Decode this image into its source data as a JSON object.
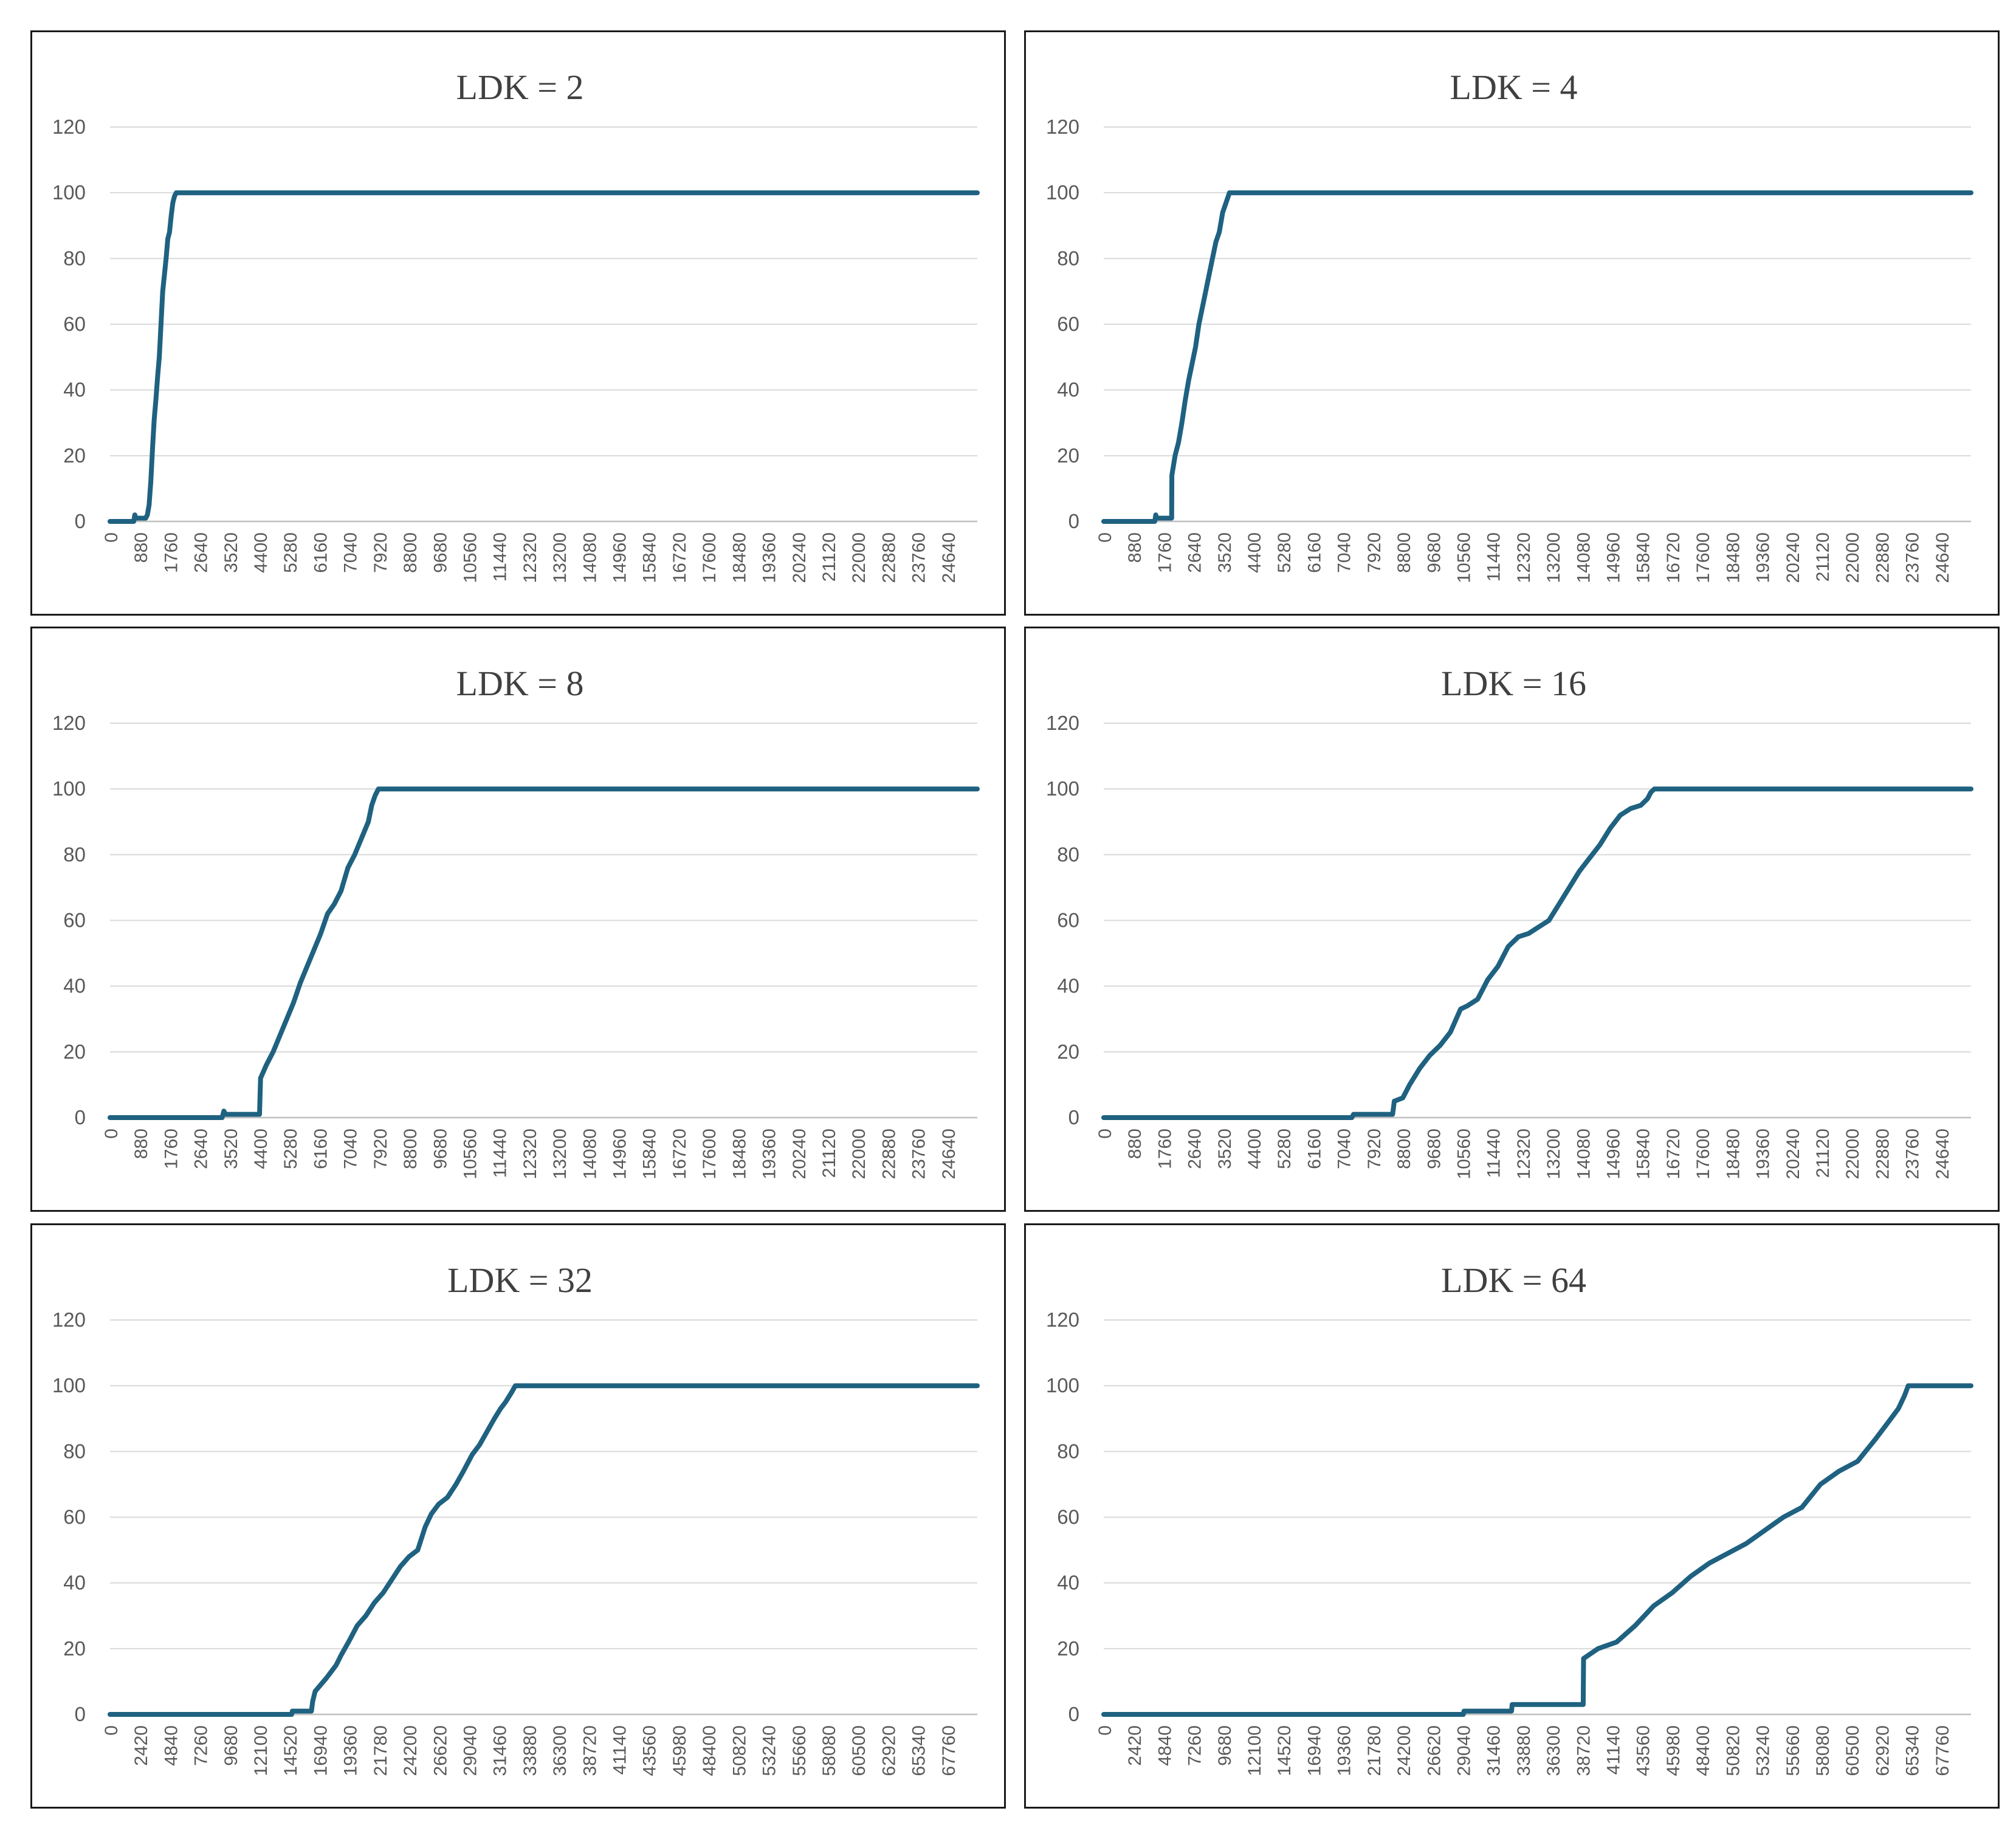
{
  "colors": {
    "series": "#1f6180",
    "grid": "#d9d9d9",
    "text": "#595959"
  },
  "chart_data": [
    {
      "type": "line",
      "title": "LDK = 2",
      "ylim": [
        0,
        120
      ],
      "yticks": [
        0,
        20,
        40,
        60,
        80,
        100,
        120
      ],
      "xlim": [
        0,
        25520
      ],
      "xticks": [
        "0",
        "880",
        "1760",
        "2640",
        "3520",
        "4400",
        "5280",
        "6160",
        "7040",
        "7920",
        "8800",
        "9680",
        "10560",
        "11440",
        "12320",
        "13200",
        "14080",
        "14960",
        "15840",
        "16720",
        "17600",
        "18480",
        "19360",
        "20240",
        "21120",
        "22000",
        "22880",
        "23760",
        "24640"
      ],
      "grid": "horizontal",
      "series": [
        {
          "x": [
            0,
            700,
            730,
            760,
            800,
            850,
            900,
            950,
            1000,
            1050,
            1100,
            1150,
            1200,
            1250,
            1300,
            1350,
            1400,
            1450,
            1500,
            1550,
            1600,
            1650,
            1700,
            1750,
            1800,
            1850,
            1900,
            1950,
            2000,
            2050,
            2100,
            2150,
            2200,
            25520
          ],
          "y": [
            0,
            0,
            2,
            1,
            1,
            1,
            1,
            1,
            1,
            1,
            2,
            5,
            12,
            22,
            31,
            37,
            44,
            50,
            60,
            70,
            75,
            80,
            86,
            88,
            93,
            97,
            99,
            100,
            100,
            100,
            100,
            100,
            100,
            100
          ]
        }
      ]
    },
    {
      "type": "line",
      "title": "LDK = 4",
      "ylim": [
        0,
        120
      ],
      "yticks": [
        0,
        20,
        40,
        60,
        80,
        100,
        120
      ],
      "xlim": [
        0,
        25520
      ],
      "xticks": [
        "0",
        "880",
        "1760",
        "2640",
        "3520",
        "4400",
        "5280",
        "6160",
        "7040",
        "7920",
        "8800",
        "9680",
        "10560",
        "11440",
        "12320",
        "13200",
        "14080",
        "14960",
        "15840",
        "16720",
        "17600",
        "18480",
        "19360",
        "20240",
        "21120",
        "22000",
        "22880",
        "23760",
        "24640"
      ],
      "grid": "horizontal",
      "series": [
        {
          "x": [
            0,
            1500,
            1530,
            1560,
            1600,
            1700,
            1900,
            2000,
            2005,
            2100,
            2200,
            2300,
            2400,
            2500,
            2600,
            2700,
            2800,
            2900,
            3000,
            3100,
            3200,
            3300,
            3400,
            3500,
            3600,
            3700,
            3800,
            25520
          ],
          "y": [
            0,
            0,
            2,
            1,
            1,
            1,
            1,
            1,
            14,
            20,
            24,
            30,
            37,
            43,
            48,
            53,
            60,
            65,
            70,
            75,
            80,
            85,
            88,
            94,
            97,
            100,
            100,
            100
          ]
        }
      ]
    },
    {
      "type": "line",
      "title": "LDK = 8",
      "ylim": [
        0,
        120
      ],
      "yticks": [
        0,
        20,
        40,
        60,
        80,
        100,
        120
      ],
      "xlim": [
        0,
        25520
      ],
      "xticks": [
        "0",
        "880",
        "1760",
        "2640",
        "3520",
        "4400",
        "5280",
        "6160",
        "7040",
        "7920",
        "8800",
        "9680",
        "10560",
        "11440",
        "12320",
        "13200",
        "14080",
        "14960",
        "15840",
        "16720",
        "17600",
        "18480",
        "19360",
        "20240",
        "21120",
        "22000",
        "22880",
        "23760",
        "24640"
      ],
      "grid": "horizontal",
      "series": [
        {
          "x": [
            0,
            3300,
            3350,
            3400,
            3500,
            4000,
            4400,
            4430,
            4600,
            4800,
            5000,
            5200,
            5400,
            5600,
            5800,
            6000,
            6200,
            6400,
            6600,
            6800,
            7000,
            7200,
            7400,
            7600,
            7700,
            7800,
            7900,
            8000,
            25520
          ],
          "y": [
            0,
            0,
            2,
            1,
            1,
            1,
            1,
            12,
            16,
            20,
            25,
            30,
            35,
            41,
            46,
            51,
            56,
            62,
            65,
            69,
            76,
            80,
            85,
            90,
            95,
            98,
            100,
            100,
            100
          ]
        }
      ]
    },
    {
      "type": "line",
      "title": "LDK = 16",
      "ylim": [
        0,
        120
      ],
      "yticks": [
        0,
        20,
        40,
        60,
        80,
        100,
        120
      ],
      "xlim": [
        0,
        25520
      ],
      "xticks": [
        "0",
        "880",
        "1760",
        "2640",
        "3520",
        "4400",
        "5280",
        "6160",
        "7040",
        "7920",
        "8800",
        "9680",
        "10560",
        "11440",
        "12320",
        "13200",
        "14080",
        "14960",
        "15840",
        "16720",
        "17600",
        "18480",
        "19360",
        "20240",
        "21120",
        "22000",
        "22880",
        "23760",
        "24640"
      ],
      "grid": "horizontal",
      "series": [
        {
          "x": [
            0,
            7300,
            7350,
            8500,
            8550,
            8800,
            9000,
            9300,
            9600,
            9900,
            10200,
            10500,
            10700,
            11000,
            11300,
            11600,
            11900,
            12200,
            12500,
            12800,
            13100,
            13400,
            13700,
            14000,
            14300,
            14600,
            14900,
            15200,
            15500,
            15800,
            16000,
            16100,
            16200,
            25520
          ],
          "y": [
            0,
            0,
            1,
            1,
            5,
            6,
            10,
            15,
            19,
            22,
            26,
            33,
            34,
            36,
            42,
            46,
            52,
            55,
            56,
            58,
            60,
            65,
            70,
            75,
            79,
            83,
            88,
            92,
            94,
            95,
            97,
            99,
            100,
            100
          ]
        }
      ]
    },
    {
      "type": "line",
      "title": "LDK = 32",
      "ylim": [
        0,
        120
      ],
      "yticks": [
        0,
        20,
        40,
        60,
        80,
        100,
        120
      ],
      "xlim": [
        0,
        70180
      ],
      "xticks": [
        "0",
        "2420",
        "4840",
        "7260",
        "9680",
        "12100",
        "14520",
        "16940",
        "19360",
        "21780",
        "24200",
        "26620",
        "29040",
        "31460",
        "33880",
        "36300",
        "38720",
        "41140",
        "43560",
        "45980",
        "48400",
        "50820",
        "53240",
        "55660",
        "58080",
        "60500",
        "62920",
        "65340",
        "67760"
      ],
      "grid": "horizontal",
      "series": [
        {
          "x": [
            0,
            14700,
            14750,
            16300,
            16400,
            16600,
            17500,
            17900,
            18300,
            18700,
            19300,
            20000,
            20700,
            21400,
            22100,
            22800,
            23500,
            24200,
            24900,
            25500,
            26000,
            26600,
            27300,
            28000,
            28600,
            29300,
            29900,
            30500,
            31100,
            31600,
            32000,
            32500,
            32800,
            70180
          ],
          "y": [
            0,
            0,
            1,
            1,
            4,
            7,
            11,
            13,
            15,
            18,
            22,
            27,
            30,
            34,
            37,
            41,
            45,
            48,
            50,
            57,
            61,
            64,
            66,
            70,
            74,
            79,
            82,
            86,
            90,
            93,
            95,
            98,
            100,
            100
          ]
        }
      ]
    },
    {
      "type": "line",
      "title": "LDK = 64",
      "ylim": [
        0,
        120
      ],
      "yticks": [
        0,
        20,
        40,
        60,
        80,
        100,
        120
      ],
      "xlim": [
        0,
        70180
      ],
      "xticks": [
        "0",
        "2420",
        "4840",
        "7260",
        "9680",
        "12100",
        "14520",
        "16940",
        "19360",
        "21780",
        "24200",
        "26620",
        "29040",
        "31460",
        "33880",
        "36300",
        "38720",
        "41140",
        "43560",
        "45980",
        "48400",
        "50820",
        "53240",
        "55660",
        "58080",
        "60500",
        "62920",
        "65340",
        "67760"
      ],
      "grid": "horizontal",
      "series": [
        {
          "x": [
            0,
            29100,
            29150,
            33000,
            33050,
            38800,
            38830,
            40000,
            41500,
            43000,
            44500,
            46000,
            47500,
            49000,
            50500,
            52000,
            53500,
            55000,
            56500,
            58000,
            59500,
            61000,
            62500,
            63500,
            64300,
            64800,
            65100,
            70180
          ],
          "y": [
            0,
            0,
            1,
            1,
            3,
            3,
            17,
            20,
            22,
            27,
            33,
            37,
            42,
            46,
            49,
            52,
            56,
            60,
            63,
            70,
            74,
            77,
            84,
            89,
            93,
            97,
            100,
            100
          ]
        }
      ]
    }
  ]
}
